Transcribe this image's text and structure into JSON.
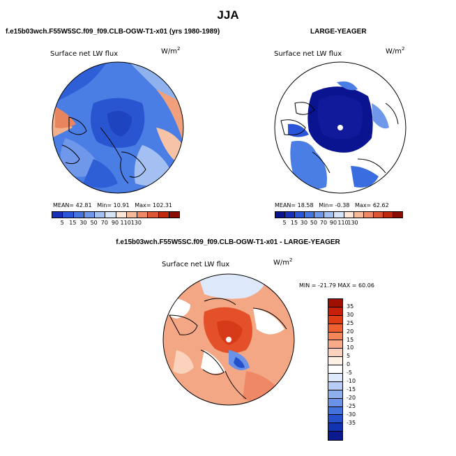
{
  "page_title": "JJA",
  "panels": {
    "top_left": {
      "case_title": "f.e15b03wch.F55W5SC.f09_f09.CLB-OGW-T1-x01 (yrs 1980-1989)",
      "variable": "Surface net LW flux",
      "units_base": "W/m",
      "units_exp": "2",
      "mean_label": "MEAN=",
      "mean": "42.81",
      "min_label": "Min=",
      "min": "10.91",
      "max_label": "Max=",
      "max": "102.31",
      "colorbar": {
        "colors": [
          "#1830b8",
          "#2a55d8",
          "#4575e0",
          "#6f98ea",
          "#a4c0f2",
          "#d6e4f9",
          "#fbe6d8",
          "#f6b999",
          "#ee8866",
          "#dd5535",
          "#c02810",
          "#8a0c04"
        ],
        "ticks": [
          "5",
          "15",
          "30",
          "50",
          "70",
          "90",
          "110",
          "130"
        ]
      }
    },
    "top_right": {
      "case_title": "LARGE-YEAGER",
      "variable": "Surface net LW flux",
      "units_base": "W/m",
      "units_exp": "2",
      "mean_label": "MEAN=",
      "mean": "18.58",
      "min_label": "Min=",
      "min": "-0.38",
      "max_label": "Max=",
      "max": "62.62",
      "colorbar": {
        "colors": [
          "#0a1490",
          "#1830b8",
          "#2a55d8",
          "#4575e0",
          "#6f98ea",
          "#a4c0f2",
          "#d6e4f9",
          "#fbe6d8",
          "#f6b999",
          "#ee8866",
          "#dd5535",
          "#c02810",
          "#8a0c04"
        ],
        "ticks": [
          "5",
          "15",
          "30",
          "50",
          "70",
          "90",
          "110",
          "130"
        ]
      }
    },
    "bottom": {
      "case_title": "f.e15b03wch.F55W5SC.f09_f09.CLB-OGW-T1-x01 - LARGE-YEAGER",
      "variable": "Surface net LW flux",
      "units_base": "W/m",
      "units_exp": "2",
      "minmax": "MIN = -21.79  MAX =  60.06",
      "colorbar": {
        "colors": [
          "#a01000",
          "#c82008",
          "#e03c14",
          "#ee6030",
          "#f5865a",
          "#f8ab88",
          "#fbd2bc",
          "#fdf0e4",
          "#ffffff",
          "#dde9fa",
          "#b6ccf4",
          "#8eaeec",
          "#6a92e6",
          "#4272dc",
          "#2450cc",
          "#1234b0",
          "#0a1a8e"
        ],
        "ticks": [
          "35",
          "30",
          "25",
          "20",
          "15",
          "10",
          "5",
          "0",
          "-5",
          "-10",
          "-15",
          "-20",
          "-25",
          "-30",
          "-35"
        ]
      }
    }
  }
}
